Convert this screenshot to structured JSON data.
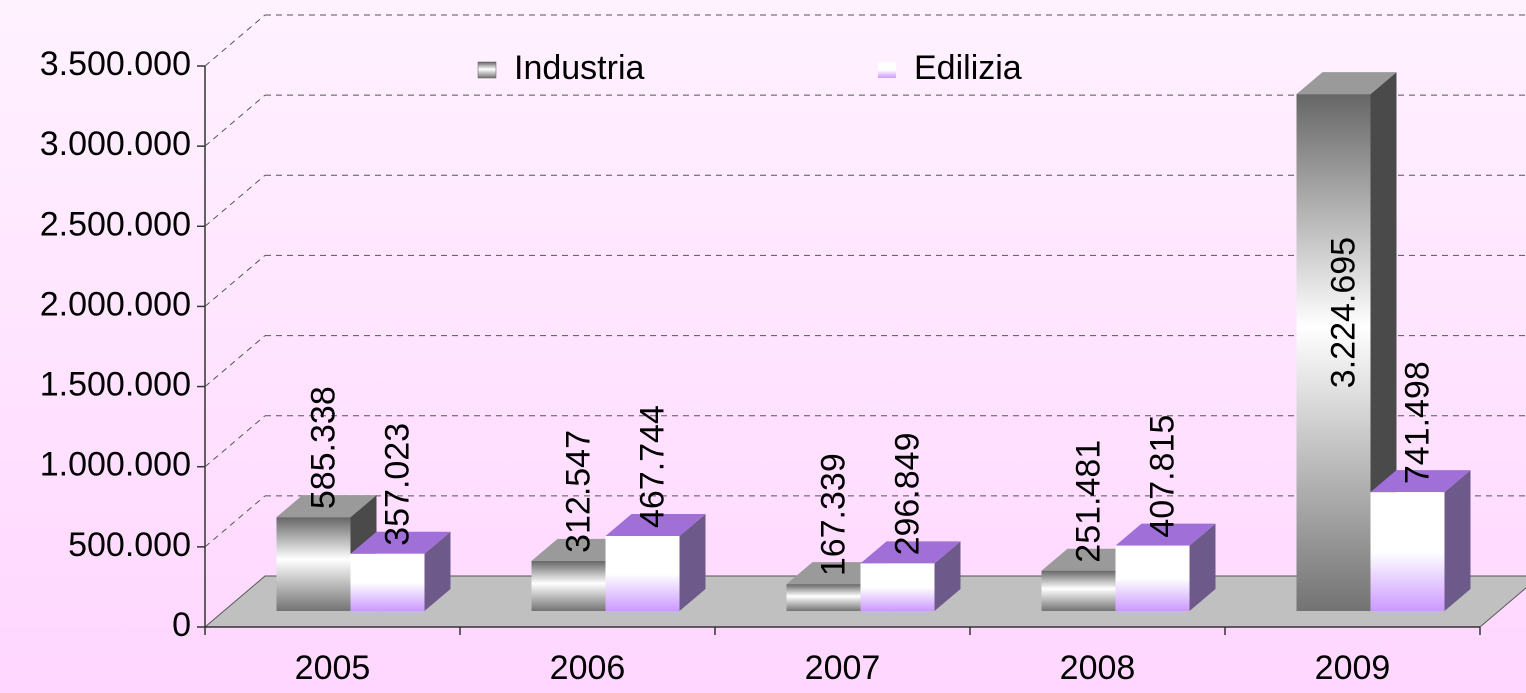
{
  "chart_data": {
    "type": "bar3d",
    "categories": [
      "2005",
      "2006",
      "2007",
      "2008",
      "2009"
    ],
    "series": [
      {
        "name": "Industria",
        "color": "#808080",
        "values": [
          585338,
          312547,
          167339,
          251481,
          3224695
        ],
        "value_labels": [
          "585.338",
          "312.547",
          "167.339",
          "251.481",
          "3.224.695"
        ]
      },
      {
        "name": "Edilizia",
        "color": "#cc99ff",
        "values": [
          357023,
          467744,
          296849,
          407815,
          741498
        ],
        "value_labels": [
          "357.023",
          "467.744",
          "296.849",
          "407.815",
          "741.498"
        ]
      }
    ],
    "ylim": [
      0,
      3500000
    ],
    "yticks": [
      0,
      {
        "value": 500000,
        "label": "500.000"
      },
      {
        "value": 1000000,
        "label": "1.000.000"
      },
      {
        "value": 1500000,
        "label": "1.500.000"
      },
      {
        "value": 2000000,
        "label": "2.000.000"
      },
      {
        "value": 2500000,
        "label": "2.500.000"
      },
      {
        "value": 3000000,
        "label": "3.000.000"
      },
      {
        "value": 3500000,
        "label": "3.500.000"
      }
    ],
    "grid": true
  }
}
